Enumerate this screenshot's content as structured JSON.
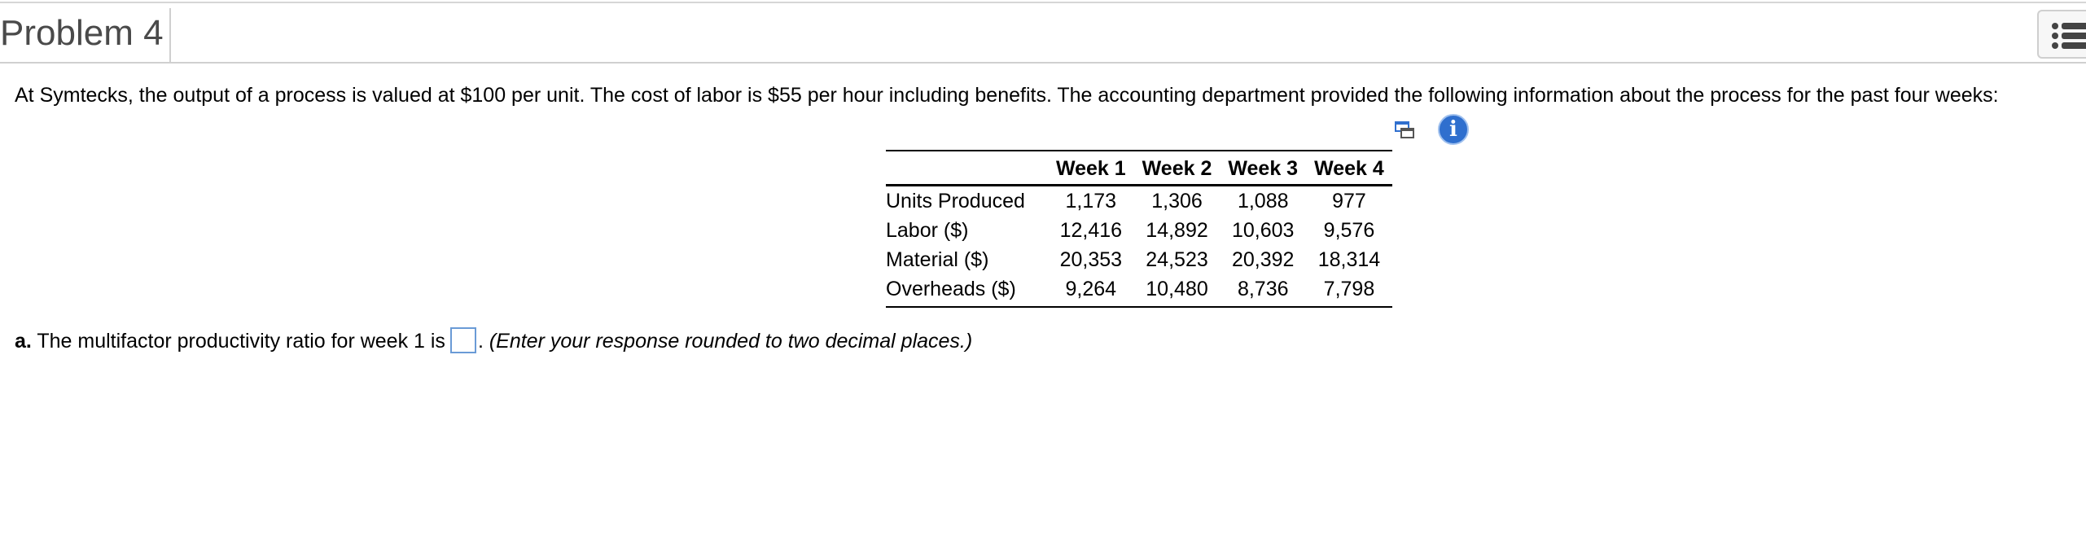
{
  "header": {
    "title": "Problem 4",
    "menu_icon": "list-menu-icon"
  },
  "intro_text": "At Symtecks, the output of a process is valued at $100 per unit. The cost of labor is $55 per hour including benefits. The accounting department provided the following information about the process for the past four weeks:",
  "tools": {
    "copy_icon": "copy-to-spreadsheet-icon",
    "info_icon": "info-icon",
    "info_glyph": "i",
    "info_color": "#2f6fce"
  },
  "table": {
    "columns": [
      "",
      "Week 1",
      "Week 2",
      "Week 3",
      "Week 4"
    ],
    "rows": [
      {
        "label": "Units Produced",
        "values": [
          "1,173",
          "1,306",
          "1,088",
          "977"
        ]
      },
      {
        "label": "Labor ($)",
        "values": [
          "12,416",
          "14,892",
          "10,603",
          "9,576"
        ]
      },
      {
        "label": "Material ($)",
        "values": [
          "20,353",
          "24,523",
          "20,392",
          "18,314"
        ]
      },
      {
        "label": "Overheads ($)",
        "values": [
          "9,264",
          "10,480",
          "8,736",
          "7,798"
        ]
      }
    ]
  },
  "question": {
    "part": "a.",
    "text": " The multifactor productivity ratio for week 1 is",
    "answer_value": "",
    "after_box": ".",
    "hint": " (Enter your response rounded to two decimal places.)"
  }
}
